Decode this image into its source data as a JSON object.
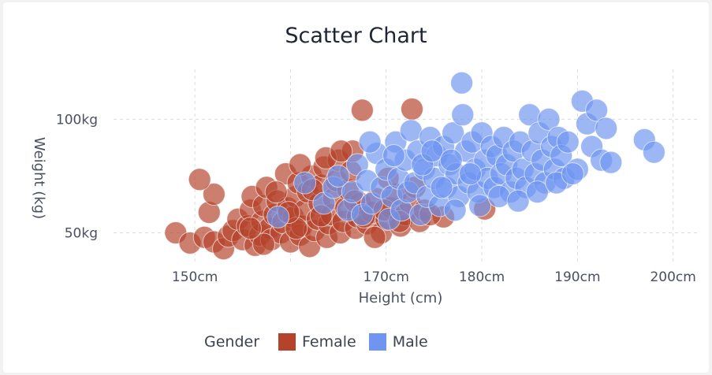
{
  "colors": {
    "female": "#b5432b",
    "male": "#6f95f0"
  },
  "chart_data": {
    "type": "scatter",
    "title": "Scatter Chart",
    "xlabel": "Height (cm)",
    "ylabel": "Weight (kg)",
    "xlim": [
      141.5,
      202.5
    ],
    "ylim": [
      37,
      122
    ],
    "x_ticks": [
      {
        "value": 150,
        "label": "150cm"
      },
      {
        "value": 160,
        "label": ""
      },
      {
        "value": 170,
        "label": "170cm"
      },
      {
        "value": 180,
        "label": "180cm"
      },
      {
        "value": 190,
        "label": "190cm"
      },
      {
        "value": 200,
        "label": "200cm"
      }
    ],
    "y_ticks": [
      {
        "value": 50,
        "label": "50kg"
      },
      {
        "value": 100,
        "label": "100kg"
      }
    ],
    "grid": true,
    "legend": {
      "title": "Gender",
      "position": "bottom"
    },
    "series": [
      {
        "name": "Female",
        "points": [
          [
            148,
            50
          ],
          [
            149.5,
            45.5
          ],
          [
            151,
            48
          ],
          [
            152,
            46
          ],
          [
            151.5,
            59
          ],
          [
            152,
            67
          ],
          [
            150.5,
            73.5
          ],
          [
            153,
            43
          ],
          [
            153.5,
            48.5
          ],
          [
            154,
            51
          ],
          [
            154.5,
            56
          ],
          [
            155,
            47
          ],
          [
            155.5,
            53
          ],
          [
            155.8,
            60
          ],
          [
            156,
            66
          ],
          [
            156.3,
            44.5
          ],
          [
            156.8,
            49
          ],
          [
            157,
            55
          ],
          [
            157.2,
            62
          ],
          [
            157.5,
            70
          ],
          [
            157.8,
            52
          ],
          [
            158,
            47
          ],
          [
            158.3,
            58
          ],
          [
            158.6,
            64
          ],
          [
            159,
            50
          ],
          [
            159.2,
            54.5
          ],
          [
            159.5,
            76
          ],
          [
            159.7,
            61
          ],
          [
            160,
            46
          ],
          [
            160.3,
            57
          ],
          [
            160.5,
            66
          ],
          [
            160.8,
            72
          ],
          [
            161,
            49
          ],
          [
            161.2,
            53
          ],
          [
            161.5,
            60
          ],
          [
            161.8,
            68
          ],
          [
            162,
            44
          ],
          [
            162.2,
            75
          ],
          [
            162.5,
            51
          ],
          [
            162.8,
            56
          ],
          [
            163,
            63
          ],
          [
            163.2,
            71
          ],
          [
            163.5,
            79
          ],
          [
            163.8,
            48
          ],
          [
            164,
            54
          ],
          [
            164.3,
            58
          ],
          [
            164.5,
            65
          ],
          [
            164.8,
            73
          ],
          [
            165,
            82
          ],
          [
            165.2,
            50
          ],
          [
            165.5,
            55
          ],
          [
            165.8,
            61
          ],
          [
            166,
            69
          ],
          [
            166.3,
            77
          ],
          [
            166.5,
            86
          ],
          [
            166.8,
            52
          ],
          [
            167,
            57
          ],
          [
            167.3,
            63
          ],
          [
            167.5,
            104
          ],
          [
            168,
            54
          ],
          [
            168.5,
            59
          ],
          [
            169,
            65
          ],
          [
            169.5,
            50
          ],
          [
            170,
            56
          ],
          [
            170.5,
            61
          ],
          [
            171,
            67
          ],
          [
            171.5,
            53
          ],
          [
            172,
            58
          ],
          [
            172.5,
            63
          ],
          [
            173,
            70
          ],
          [
            173.5,
            55
          ],
          [
            174,
            60
          ],
          [
            172.7,
            104.5
          ],
          [
            168.8,
            48
          ],
          [
            170.2,
            74
          ],
          [
            176,
            57
          ],
          [
            180.3,
            60.5
          ],
          [
            161,
            80
          ],
          [
            163.7,
            83
          ],
          [
            165.3,
            86
          ],
          [
            162.3,
            69
          ],
          [
            160.6,
            52
          ],
          [
            158.5,
            68
          ],
          [
            157.2,
            45
          ],
          [
            155.8,
            52
          ],
          [
            159.8,
            59
          ],
          [
            163.2,
            57.5
          ],
          [
            166.7,
            64
          ],
          [
            169.8,
            60
          ],
          [
            171.4,
            55
          ],
          [
            174.6,
            58
          ],
          [
            167.7,
            57
          ]
        ]
      },
      {
        "name": "Male",
        "points": [
          [
            158.7,
            57
          ],
          [
            161.5,
            72
          ],
          [
            163.5,
            63
          ],
          [
            164.5,
            70
          ],
          [
            165,
            75
          ],
          [
            166,
            60
          ],
          [
            166.5,
            68
          ],
          [
            167,
            80
          ],
          [
            167.5,
            58
          ],
          [
            168,
            73
          ],
          [
            168.5,
            63
          ],
          [
            169,
            85
          ],
          [
            169.5,
            70
          ],
          [
            170,
            78
          ],
          [
            170.3,
            56
          ],
          [
            170.6,
            66
          ],
          [
            171,
            90
          ],
          [
            171.3,
            74
          ],
          [
            171.6,
            60
          ],
          [
            172,
            82
          ],
          [
            172.3,
            68
          ],
          [
            172.6,
            95
          ],
          [
            173,
            72
          ],
          [
            173.3,
            86
          ],
          [
            173.6,
            58
          ],
          [
            174,
            78
          ],
          [
            174.3,
            66
          ],
          [
            174.6,
            92
          ],
          [
            175,
            74
          ],
          [
            175.3,
            84
          ],
          [
            175.6,
            62
          ],
          [
            176,
            88
          ],
          [
            176.3,
            70
          ],
          [
            176.6,
            80
          ],
          [
            177,
            94
          ],
          [
            177.3,
            76
          ],
          [
            177.6,
            66
          ],
          [
            177.9,
            116
          ],
          [
            178,
            102
          ],
          [
            178.3,
            86
          ],
          [
            178.6,
            72
          ],
          [
            179,
            90
          ],
          [
            179.3,
            78
          ],
          [
            179.6,
            68
          ],
          [
            180,
            94
          ],
          [
            180.3,
            82
          ],
          [
            180.6,
            74
          ],
          [
            181,
            88
          ],
          [
            181.3,
            70
          ],
          [
            181.6,
            84
          ],
          [
            182,
            76
          ],
          [
            182.3,
            92
          ],
          [
            182.6,
            80
          ],
          [
            183,
            68
          ],
          [
            183.3,
            86
          ],
          [
            183.6,
            74
          ],
          [
            184,
            90
          ],
          [
            184.3,
            78
          ],
          [
            184.6,
            70
          ],
          [
            185,
            102
          ],
          [
            185.3,
            86
          ],
          [
            185.6,
            76
          ],
          [
            186,
            94
          ],
          [
            186.3,
            82
          ],
          [
            186.6,
            72
          ],
          [
            187,
            100
          ],
          [
            187.3,
            88
          ],
          [
            187.6,
            78
          ],
          [
            188,
            92
          ],
          [
            188.3,
            84
          ],
          [
            188.6,
            74
          ],
          [
            189,
            90
          ],
          [
            190,
            78
          ],
          [
            190.5,
            108
          ],
          [
            191,
            98
          ],
          [
            191.5,
            88
          ],
          [
            192,
            104
          ],
          [
            192.5,
            82
          ],
          [
            193,
            96
          ],
          [
            193.5,
            81
          ],
          [
            197,
            91
          ],
          [
            198,
            85.5
          ],
          [
            168.3,
            90
          ],
          [
            170.8,
            84
          ],
          [
            173.8,
            80
          ],
          [
            175.8,
            70
          ],
          [
            177.2,
            60
          ],
          [
            179.8,
            62
          ],
          [
            181.8,
            66
          ],
          [
            183.8,
            64
          ],
          [
            185.8,
            68
          ],
          [
            187.8,
            72
          ],
          [
            189.5,
            76
          ],
          [
            174.8,
            86
          ],
          [
            176.8,
            82
          ],
          [
            178.8,
            76
          ]
        ]
      }
    ]
  }
}
